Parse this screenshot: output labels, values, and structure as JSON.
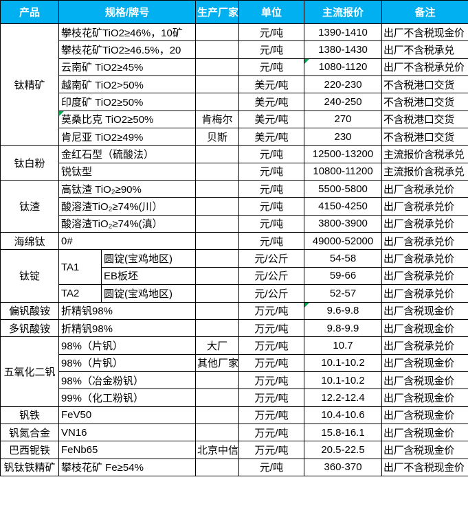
{
  "header": {
    "columns": [
      "产品",
      "规格/牌号",
      "生产厂家",
      "单位",
      "主流报价",
      "备注"
    ]
  },
  "colors": {
    "header_bg": "#00B0F0",
    "header_text": "#FFFFFF",
    "border": "#000000",
    "marker_green": "#00A650"
  },
  "icons": {
    "comment_marker": "green-corner-triangle"
  },
  "table": {
    "groups": [
      {
        "product": "钛精矿",
        "rows": [
          {
            "spec": "攀枝花矿TiO2≥46%，10矿",
            "maker": "",
            "unit": "元/吨",
            "price": "1390-1410",
            "note": "出厂不含税现金价"
          },
          {
            "spec": "攀枝花矿TiO2≥46.5%，20",
            "maker": "",
            "unit": "元/吨",
            "price": "1380-1430",
            "note": "出厂不含税承兑"
          },
          {
            "spec": "云南矿 TiO2≥45%",
            "maker": "",
            "unit": "元/吨",
            "price": "1080-1120",
            "note": "出厂不含税承兑价",
            "price_marker": true
          },
          {
            "spec": "越南矿 TiO2>50%",
            "maker": "",
            "unit": "美元/吨",
            "price": "220-230",
            "note": "不含税港口交货"
          },
          {
            "spec": "印度矿 TiO2≥50%",
            "maker": "",
            "unit": "美元/吨",
            "price": "240-250",
            "note": "不含税港口交货"
          },
          {
            "spec": "莫桑比克 TiO2≥50%",
            "maker": "肯梅尔",
            "unit": "美元/吨",
            "price": "270",
            "note": "不含税港口交货",
            "spec_marker": true
          },
          {
            "spec": "肯尼亚 TiO2≥49%",
            "maker": "贝斯",
            "unit": "美元/吨",
            "price": "230",
            "note": "不含税港口交货"
          }
        ]
      },
      {
        "product": "钛白粉",
        "rows": [
          {
            "spec": "金红石型（硫酸法）",
            "maker": "",
            "unit": "元/吨",
            "price": "12500-13200",
            "note": "主流报价含税承兑"
          },
          {
            "spec": "锐钛型",
            "maker": "",
            "unit": "元/吨",
            "price": "10800-11200",
            "note": "主流报价含税承兑"
          }
        ]
      },
      {
        "product": "钛渣",
        "rows": [
          {
            "spec": "高钛渣 TiO₂≥90%",
            "maker": "",
            "unit": "元/吨",
            "price": "5500-5800",
            "note": "出厂含税承兑价"
          },
          {
            "spec": "酸溶渣TiO₂≥74%(川）",
            "maker": "",
            "unit": "元/吨",
            "price": "4150-4250",
            "note": "出厂含税承兑价"
          },
          {
            "spec": "酸溶渣TiO₂≥74%(滇）",
            "maker": "",
            "unit": "元/吨",
            "price": "3800-3900",
            "note": "出厂含税承兑价"
          }
        ]
      },
      {
        "product": "海绵钛",
        "rows": [
          {
            "spec": "0#",
            "maker": "",
            "unit": "元/吨",
            "price": "49000-52000",
            "note": "出厂含税承兑价"
          }
        ]
      },
      {
        "product": "钛锭",
        "rows": [
          {
            "spec_a": "TA1",
            "spec_a_rowspan": 2,
            "spec_b": "圆锭(宝鸡地区)",
            "maker": "",
            "unit": "元/公斤",
            "price": "54-58",
            "note": "出厂含税承兑价"
          },
          {
            "spec_b": "EB板坯",
            "maker": "",
            "unit": "元/公斤",
            "price": "59-66",
            "note": "出厂含税承兑价"
          },
          {
            "spec_a": "TA2",
            "spec_a_rowspan": 1,
            "spec_b": "圆锭(宝鸡地区)",
            "maker": "",
            "unit": "元/公斤",
            "price": "52-57",
            "note": "出厂含税承兑价"
          }
        ]
      },
      {
        "product": "偏钒酸铵",
        "rows": [
          {
            "spec": "折精钒98%",
            "maker": "",
            "unit": "万元/吨",
            "price": "9.6-9.8",
            "note": "出厂含税现金价",
            "price_marker": true
          }
        ]
      },
      {
        "product": "多钒酸铵",
        "rows": [
          {
            "spec": "折精钒98%",
            "maker": "",
            "unit": "万元/吨",
            "price": "9.8-9.9",
            "note": "出厂含税现金价"
          }
        ]
      },
      {
        "product": "五氧化二钒",
        "rows": [
          {
            "spec": "98%（片钒）",
            "maker": "大厂",
            "unit": "万元/吨",
            "price": "10.7",
            "note": "出厂含税承兑价"
          },
          {
            "spec": "98%（片钒）",
            "maker": "其他厂家",
            "unit": "万元/吨",
            "price": "10.1-10.2",
            "note": "出厂含税现金价"
          },
          {
            "spec": "98%（冶金粉钒）",
            "maker": "",
            "unit": "万元/吨",
            "price": "10.1-10.2",
            "note": "出厂含税现金价"
          },
          {
            "spec": "99%（化工粉钒）",
            "maker": "",
            "unit": "万元/吨",
            "price": "12.2-12.4",
            "note": "出厂含税现金价"
          }
        ]
      },
      {
        "product": "钒铁",
        "rows": [
          {
            "spec": "FeV50",
            "maker": "",
            "unit": "万元/吨",
            "price": "10.4-10.6",
            "note": "出厂含税现金价"
          }
        ]
      },
      {
        "product": "钒氮合金",
        "rows": [
          {
            "spec": "VN16",
            "maker": "",
            "unit": "万元/吨",
            "price": "15.8-16.1",
            "note": "出厂含税现金价"
          }
        ]
      },
      {
        "product": "巴西铌铁",
        "rows": [
          {
            "spec": "FeNb65",
            "maker": "北京中信",
            "unit": "万元/吨",
            "price": "20.5-22.5",
            "note": "出厂含税现金价"
          }
        ]
      },
      {
        "product": "钒钛铁精矿",
        "rows": [
          {
            "spec": "攀枝花矿 Fe≥54%",
            "maker": "",
            "unit": "元/吨",
            "price": "360-370",
            "note": "出厂不含税现金价"
          }
        ]
      }
    ]
  }
}
